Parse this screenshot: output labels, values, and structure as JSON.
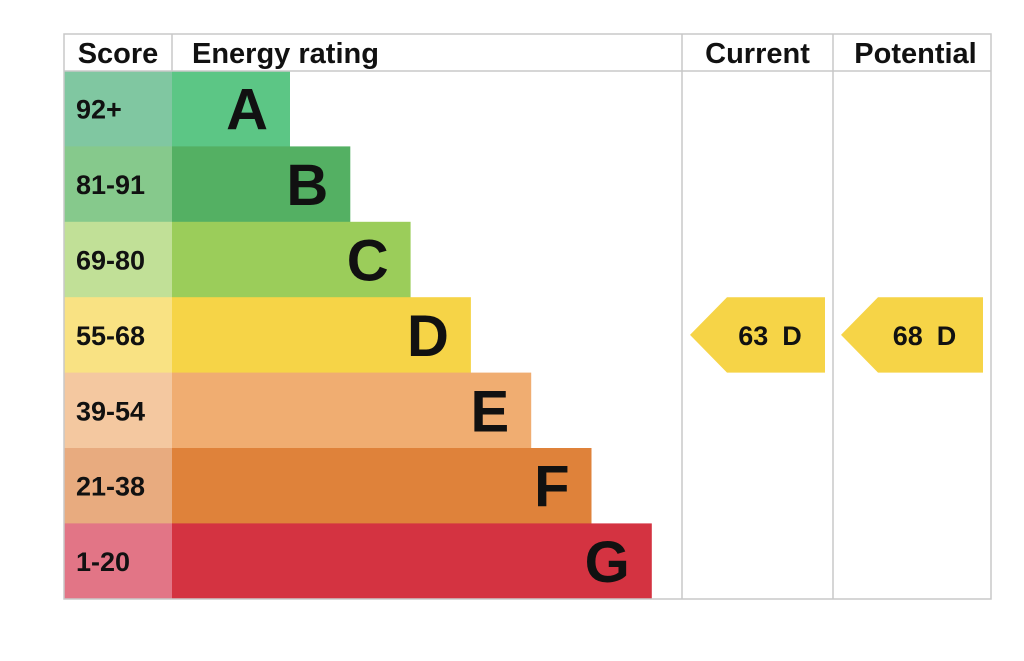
{
  "chart_data": {
    "type": "table",
    "headers": {
      "score": "Score",
      "rating": "Energy rating",
      "current": "Current",
      "potential": "Potential"
    },
    "bands": [
      {
        "score": "92+",
        "letter": "A",
        "color": "#5cc685",
        "score_bg": "#80c7a1"
      },
      {
        "score": "81-91",
        "letter": "B",
        "color": "#54b063",
        "score_bg": "#86c98c"
      },
      {
        "score": "69-80",
        "letter": "C",
        "color": "#9bcd5a",
        "score_bg": "#c1e097"
      },
      {
        "score": "55-68",
        "letter": "D",
        "color": "#f6d447",
        "score_bg": "#f9e283"
      },
      {
        "score": "39-54",
        "letter": "E",
        "color": "#f0ad71",
        "score_bg": "#f4c8a0"
      },
      {
        "score": "21-38",
        "letter": "F",
        "color": "#df823a",
        "score_bg": "#e8ab7f"
      },
      {
        "score": "1-20",
        "letter": "G",
        "color": "#d43341",
        "score_bg": "#e27586"
      }
    ],
    "current": {
      "value": 63,
      "letter": "D",
      "band_index": 3,
      "color": "#f6d447"
    },
    "potential": {
      "value": 68,
      "letter": "D",
      "band_index": 3,
      "color": "#f6d447"
    }
  }
}
